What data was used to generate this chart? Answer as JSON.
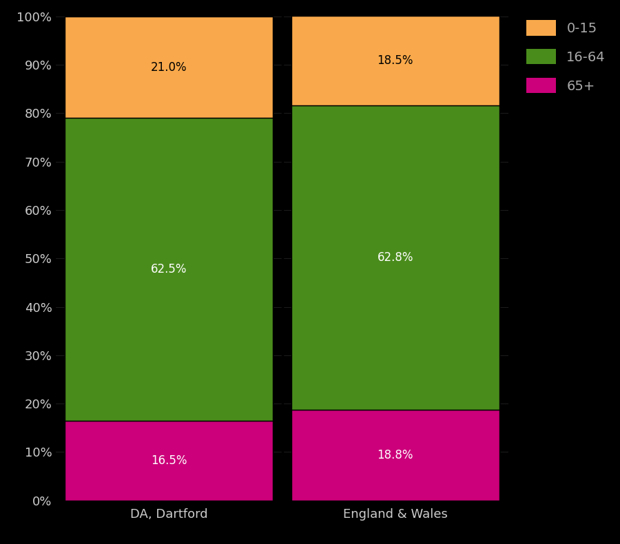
{
  "categories": [
    "DA, Dartford",
    "England & Wales"
  ],
  "segments": {
    "65+": [
      16.5,
      18.8
    ],
    "16-64": [
      62.5,
      62.8
    ],
    "0-15": [
      21.0,
      18.5
    ]
  },
  "colors": {
    "65+": "#cc007a",
    "16-64": "#4a8c1c",
    "0-15": "#f9a94b"
  },
  "label_colors": {
    "65+": "#ffffff",
    "16-64": "#ffffff",
    "0-15": "#000000"
  },
  "background_color": "#000000",
  "text_color": "#cccccc",
  "legend_text_color": "#aaaaaa",
  "bar_edge_color": "#000000",
  "ytick_labels": [
    "0%",
    "10%",
    "20%",
    "30%",
    "40%",
    "50%",
    "60%",
    "70%",
    "80%",
    "90%",
    "100%"
  ],
  "ytick_values": [
    0,
    10,
    20,
    30,
    40,
    50,
    60,
    70,
    80,
    90,
    100
  ],
  "xlabel_fontsize": 13,
  "ylabel_fontsize": 13,
  "label_fontsize": 12,
  "legend_fontsize": 14,
  "figsize": [
    9.0,
    7.9
  ],
  "dpi": 100
}
